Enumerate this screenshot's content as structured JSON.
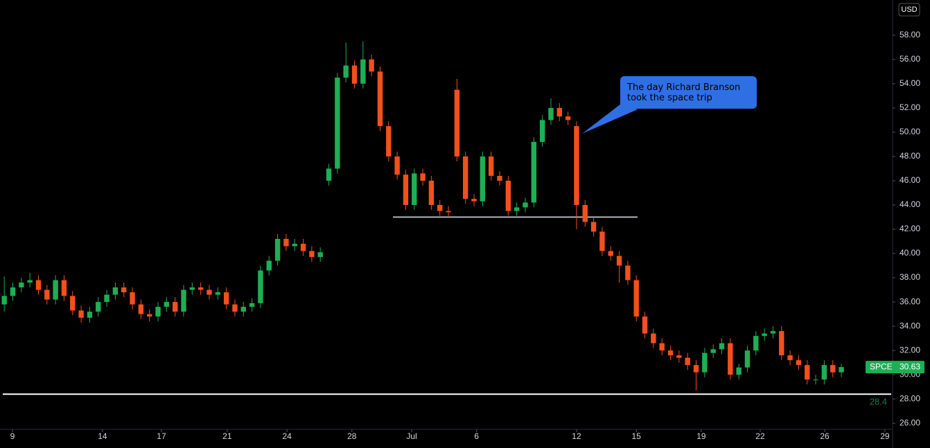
{
  "chart_data": {
    "type": "candlestick",
    "currency": "USD",
    "ylim": [
      25.5,
      60.9
    ],
    "yticks": [
      {
        "value": 26,
        "label": "26.00"
      },
      {
        "value": 28,
        "label": "28.00"
      },
      {
        "value": 30,
        "label": "30.00"
      },
      {
        "value": 32,
        "label": "32.00"
      },
      {
        "value": 34,
        "label": "34.00"
      },
      {
        "value": 36,
        "label": "36.00"
      },
      {
        "value": 38,
        "label": "38.00"
      },
      {
        "value": 40,
        "label": "40.00"
      },
      {
        "value": 42,
        "label": "42.00"
      },
      {
        "value": 44,
        "label": "44.00"
      },
      {
        "value": 46,
        "label": "46.00"
      },
      {
        "value": 48,
        "label": "48.00"
      },
      {
        "value": 50,
        "label": "50.00"
      },
      {
        "value": 52,
        "label": "52.00"
      },
      {
        "value": 54,
        "label": "54.00"
      },
      {
        "value": 56,
        "label": "56.00"
      },
      {
        "value": 58,
        "label": "58.00"
      }
    ],
    "xlim": [
      -0.5,
      104
    ],
    "xticks": [
      {
        "value": 0.96,
        "label": "9"
      },
      {
        "value": 11.5,
        "label": "14"
      },
      {
        "value": 18.4,
        "label": "17"
      },
      {
        "value": 26.1,
        "label": "21"
      },
      {
        "value": 33.1,
        "label": "24"
      },
      {
        "value": 40.7,
        "label": "28"
      },
      {
        "value": 47.7,
        "label": "Jul"
      },
      {
        "value": 55.3,
        "label": "6"
      },
      {
        "value": 67,
        "label": "12"
      },
      {
        "value": 74,
        "label": "15"
      },
      {
        "value": 81.6,
        "label": "19"
      },
      {
        "value": 88.5,
        "label": "22"
      },
      {
        "value": 96.05,
        "label": "26"
      },
      {
        "value": 103.1,
        "label": "29"
      }
    ],
    "up_color": "#1fae55",
    "down_color": "#f2501d",
    "open": [
      35.8,
      36.5,
      37.2,
      37.6,
      37.8,
      37,
      36.2,
      37.8,
      36.5,
      35.3,
      34.7,
      35.2,
      36,
      36.6,
      37.2,
      36.8,
      35.8,
      35,
      34.8,
      35.6,
      36,
      35.2,
      37,
      37.2,
      37,
      36.6,
      36.8,
      35.8,
      35.2,
      35.6,
      35.9,
      38.6,
      39.4,
      41.2,
      40.6,
      40.8,
      40.2,
      39.7,
      46,
      47,
      54.5,
      55.5,
      54,
      56,
      55,
      50.5,
      48,
      46.5,
      44,
      46.6,
      46,
      44,
      43.5,
      53.5,
      48,
      44.5,
      44.3,
      48,
      46.4,
      46,
      43.5,
      43.8,
      44.2,
      49.2,
      51,
      52,
      51.3,
      50.5,
      44,
      42.6,
      41.8,
      40.2,
      39.8,
      39,
      37.8,
      34.8,
      33.4,
      32.6,
      32,
      31.6,
      31.4,
      30.8,
      30.2,
      31.8,
      32.1,
      32.6,
      30,
      30.6,
      32,
      33.2,
      33.4,
      33.6,
      31.6,
      31.2,
      30.8,
      29.6,
      29.6,
      30.8,
      30.2
    ],
    "high": [
      38.1,
      37.6,
      38,
      38.4,
      38.2,
      37.4,
      38.2,
      38.2,
      36.9,
      35.7,
      35.6,
      36.4,
      37,
      37.6,
      37.6,
      37.2,
      36.2,
      35.4,
      36,
      36.4,
      36.4,
      37.4,
      37.6,
      37.6,
      37.4,
      37.2,
      37.2,
      36.2,
      36,
      36.3,
      39,
      39.8,
      41.6,
      41.6,
      41.2,
      41.2,
      40.6,
      40.5,
      47.4,
      54.9,
      57.4,
      55.9,
      57.5,
      56.4,
      55.4,
      50.9,
      48.4,
      46.9,
      47,
      47,
      46.4,
      44.4,
      43.9,
      54.4,
      48.4,
      44.9,
      48.4,
      48.4,
      46.8,
      46.4,
      44.2,
      44.6,
      49.6,
      51.4,
      52.8,
      52.4,
      51.7,
      50.9,
      44.4,
      43,
      42.2,
      40.6,
      40.2,
      39.4,
      38.2,
      35.2,
      33.8,
      33,
      32.4,
      32,
      31.8,
      31.2,
      32.2,
      32.5,
      33,
      33,
      30.9,
      32.4,
      33.6,
      33.8,
      34,
      34,
      32,
      31.6,
      31.2,
      30,
      31.2,
      31.2,
      30.9
    ],
    "low": [
      35.2,
      36.1,
      36.8,
      37.2,
      36.6,
      35.8,
      35.8,
      36.1,
      34.9,
      34.3,
      34.3,
      34.8,
      35.6,
      36.2,
      36.4,
      35.4,
      34.6,
      34.4,
      34.4,
      35.2,
      34.8,
      34.8,
      36.6,
      36.6,
      36.2,
      36.2,
      35.4,
      34.8,
      34.8,
      35.2,
      35.5,
      38.2,
      39,
      40.2,
      40.2,
      39.8,
      39.3,
      39.3,
      45.6,
      46.6,
      54.1,
      53.6,
      53.6,
      54.6,
      50.1,
      47.6,
      46.1,
      43.6,
      43.6,
      45.6,
      43.6,
      43.1,
      43,
      47.6,
      44.1,
      43.9,
      43.9,
      46,
      45.6,
      43.1,
      43.1,
      43.4,
      43.8,
      48.8,
      50.6,
      50.9,
      50.6,
      42,
      42.2,
      41.4,
      39.8,
      39.4,
      37.6,
      37.4,
      34.4,
      33,
      32.2,
      31.6,
      31.2,
      31,
      30.4,
      28.7,
      29.8,
      31.4,
      31.7,
      29.6,
      29.6,
      30.2,
      31.6,
      32.8,
      33,
      31.2,
      30.8,
      30.4,
      29.2,
      29.2,
      29.2,
      29.8,
      29.8
    ],
    "close": [
      36.5,
      37.2,
      37.6,
      37.8,
      37,
      36.2,
      37.8,
      36.5,
      35.3,
      34.7,
      35.2,
      36,
      36.6,
      37.2,
      36.8,
      35.8,
      35,
      34.8,
      35.6,
      36,
      35.2,
      37,
      37.2,
      37,
      36.6,
      36.8,
      35.8,
      35.2,
      35.6,
      35.9,
      38.6,
      39.4,
      41.2,
      40.6,
      40.8,
      40.2,
      39.7,
      40.1,
      47,
      54.5,
      55.5,
      54,
      56,
      55,
      50.5,
      48,
      46.5,
      44,
      46.6,
      46,
      44,
      43.5,
      43.4,
      48,
      44.5,
      44.3,
      48,
      46.4,
      46,
      43.5,
      43.8,
      44.2,
      49.2,
      51,
      52,
      51.3,
      51,
      44,
      42.6,
      41.8,
      40.2,
      39.8,
      39,
      37.8,
      34.8,
      33.4,
      32.6,
      32,
      31.6,
      31.4,
      30.8,
      30.2,
      31.8,
      32.1,
      32.6,
      30,
      30.6,
      32,
      33.2,
      33.4,
      33.6,
      31.6,
      31.2,
      30.8,
      29.6,
      29.6,
      30.8,
      30.2,
      30.63
    ],
    "support_line": 43,
    "level_line": 28.4,
    "last_price": {
      "symbol": "SPCE",
      "value": 30.63
    },
    "annotation": "The day Richard Branson took the space trip"
  }
}
